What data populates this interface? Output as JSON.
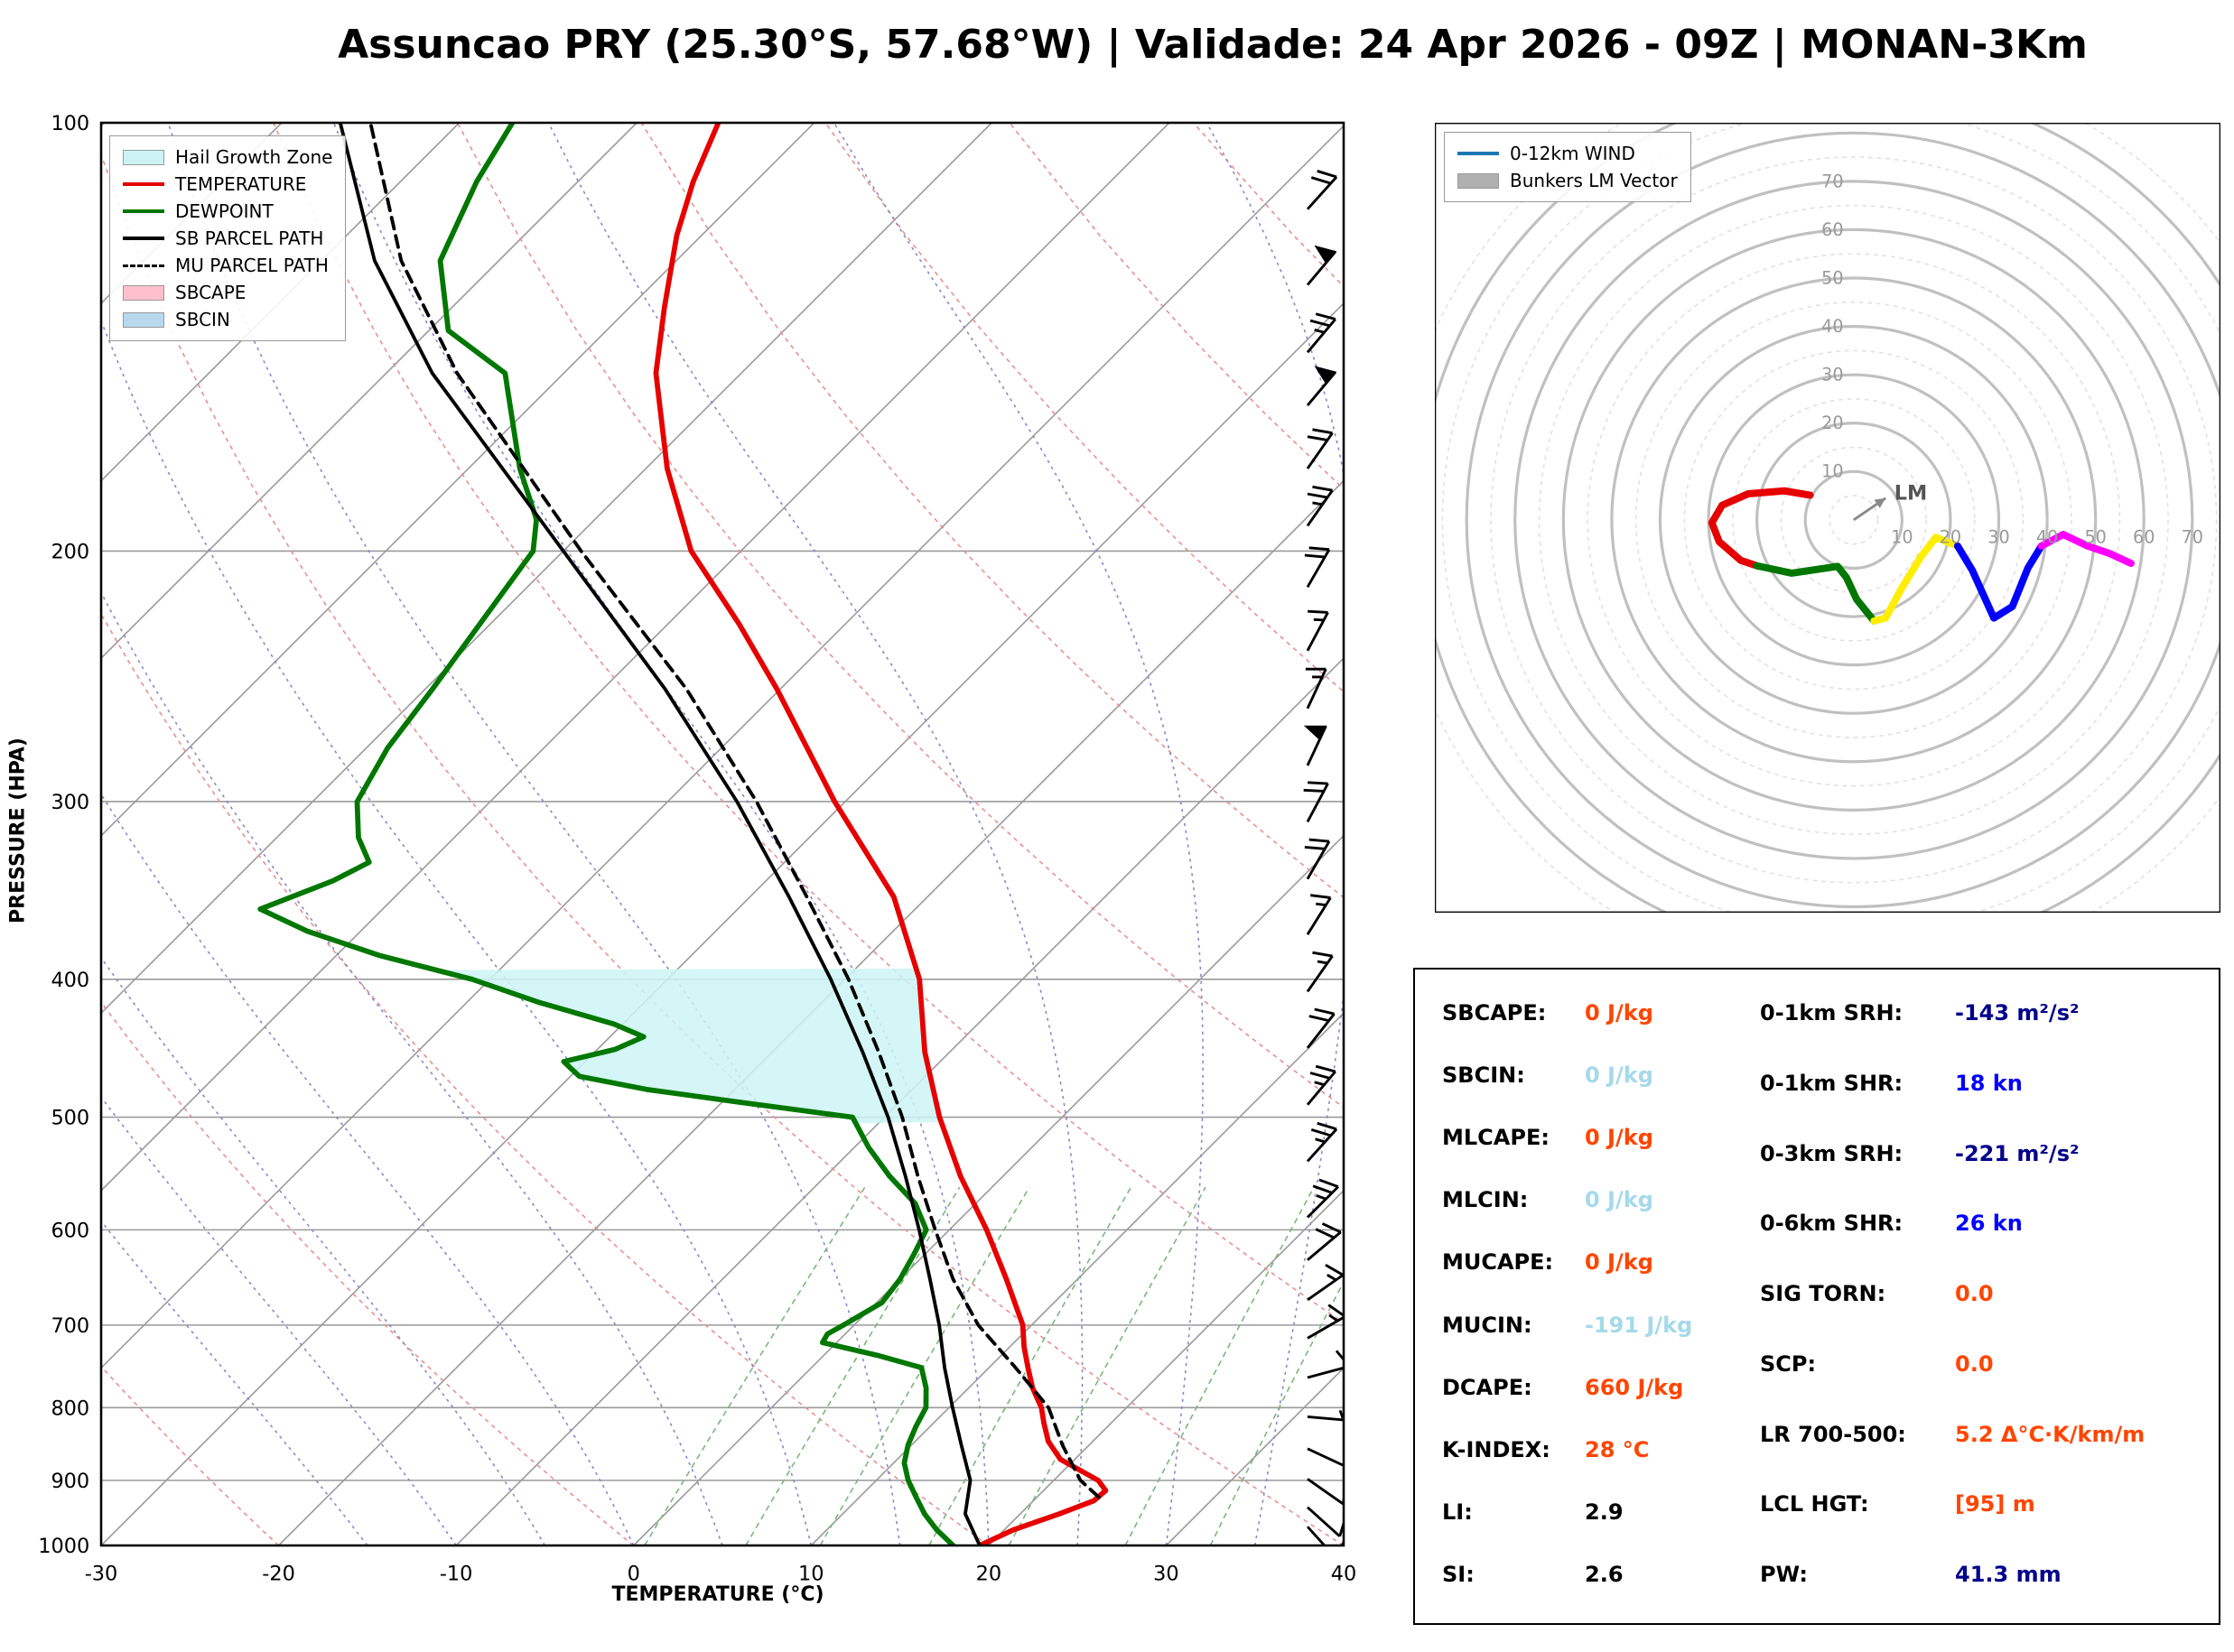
{
  "page": {
    "title": "Assuncao PRY (25.30°S, 57.68°W) | Validade: 24 Apr 2026 - 09Z | MONAN-3Km"
  },
  "skewt": {
    "xlabel": "TEMPERATURE (°C)",
    "ylabel": "PRESSURE (HPA)",
    "x_ticks": [
      -30,
      -20,
      -10,
      0,
      10,
      20,
      30,
      40
    ],
    "p_ticks": [
      100,
      200,
      300,
      400,
      500,
      600,
      700,
      800,
      900,
      1000
    ],
    "legend": [
      {
        "label": "Hail Growth Zone",
        "swatch": "patch",
        "color": "#cdf4f4"
      },
      {
        "label": "TEMPERATURE",
        "swatch": "line",
        "color": "#e60000"
      },
      {
        "label": "DEWPOINT",
        "swatch": "line",
        "color": "#007700"
      },
      {
        "label": "SB PARCEL PATH",
        "swatch": "line",
        "color": "#000000"
      },
      {
        "label": "MU PARCEL PATH",
        "swatch": "dashed",
        "color": "#000000"
      },
      {
        "label": "SBCAPE",
        "swatch": "patch",
        "color": "#ffc0cb"
      },
      {
        "label": "SBCIN",
        "swatch": "patch",
        "color": "#b8d8ee"
      }
    ],
    "wind_barbs": [
      {
        "p": 100,
        "spd": 20,
        "dir": 45
      },
      {
        "p": 115,
        "spd": 20,
        "dir": 42
      },
      {
        "p": 130,
        "spd": 50,
        "dir": 40
      },
      {
        "p": 145,
        "spd": 25,
        "dir": 40
      },
      {
        "p": 158,
        "spd": 50,
        "dir": 40
      },
      {
        "p": 175,
        "spd": 20,
        "dir": 35
      },
      {
        "p": 192,
        "spd": 25,
        "dir": 35
      },
      {
        "p": 212,
        "spd": 20,
        "dir": 30
      },
      {
        "p": 235,
        "spd": 15,
        "dir": 28
      },
      {
        "p": 258,
        "spd": 15,
        "dir": 25
      },
      {
        "p": 283,
        "spd": 50,
        "dir": 25
      },
      {
        "p": 310,
        "spd": 20,
        "dir": 28
      },
      {
        "p": 340,
        "spd": 20,
        "dir": 30
      },
      {
        "p": 372,
        "spd": 15,
        "dir": 32
      },
      {
        "p": 408,
        "spd": 15,
        "dir": 35
      },
      {
        "p": 447,
        "spd": 20,
        "dir": 38
      },
      {
        "p": 490,
        "spd": 25,
        "dir": 40
      },
      {
        "p": 537,
        "spd": 25,
        "dir": 42
      },
      {
        "p": 588,
        "spd": 25,
        "dir": 45
      },
      {
        "p": 630,
        "spd": 20,
        "dir": 50
      },
      {
        "p": 672,
        "spd": 15,
        "dir": 55
      },
      {
        "p": 715,
        "spd": 15,
        "dir": 60
      },
      {
        "p": 762,
        "spd": 10,
        "dir": 75
      },
      {
        "p": 812,
        "spd": 5,
        "dir": 95
      },
      {
        "p": 855,
        "spd": 10,
        "dir": 115
      },
      {
        "p": 898,
        "spd": 10,
        "dir": 125
      },
      {
        "p": 940,
        "spd": 10,
        "dir": 132
      },
      {
        "p": 970,
        "spd": 8,
        "dir": 138
      },
      {
        "p": 1000,
        "spd": 8,
        "dir": 142
      }
    ]
  },
  "chart_data": [
    {
      "type": "line",
      "title": "Skew-T Log-P sounding",
      "xlabel": "TEMPERATURE (°C)",
      "ylabel": "PRESSURE (HPA)",
      "xlim": [
        -30,
        40
      ],
      "ylim": [
        1000,
        100
      ],
      "y_scale": "log",
      "grid": true,
      "hail_growth_zone_pressure_range": [
        505,
        393
      ],
      "series": [
        {
          "name": "TEMPERATURE",
          "color": "#e60000",
          "style": "solid",
          "points_p_T": [
            [
              1000,
              19.5
            ],
            [
              975,
              20.5
            ],
            [
              950,
              22.2
            ],
            [
              930,
              23.4
            ],
            [
              915,
              23.5
            ],
            [
              900,
              22.5
            ],
            [
              870,
              19.2
            ],
            [
              845,
              17.5
            ],
            [
              820,
              16.2
            ],
            [
              800,
              15.2
            ],
            [
              775,
              13.6
            ],
            [
              750,
              12.2
            ],
            [
              725,
              10.8
            ],
            [
              700,
              9.5
            ],
            [
              650,
              6.0
            ],
            [
              600,
              2.1
            ],
            [
              550,
              -2.4
            ],
            [
              500,
              -6.9
            ],
            [
              450,
              -11.4
            ],
            [
              400,
              -15.8
            ],
            [
              350,
              -21.9
            ],
            [
              300,
              -30.6
            ],
            [
              250,
              -40.2
            ],
            [
              225,
              -46.0
            ],
            [
              200,
              -52.8
            ],
            [
              175,
              -58.8
            ],
            [
              150,
              -64.8
            ],
            [
              135,
              -68.0
            ],
            [
              120,
              -71.4
            ],
            [
              110,
              -73.5
            ],
            [
              100,
              -75.4
            ]
          ]
        },
        {
          "name": "DEWPOINT",
          "color": "#007700",
          "style": "solid",
          "points_p_T": [
            [
              1000,
              18.0
            ],
            [
              975,
              16.2
            ],
            [
              950,
              14.6
            ],
            [
              925,
              13.2
            ],
            [
              900,
              11.8
            ],
            [
              875,
              10.6
            ],
            [
              850,
              9.8
            ],
            [
              825,
              9.2
            ],
            [
              800,
              8.7
            ],
            [
              775,
              7.6
            ],
            [
              750,
              6.2
            ],
            [
              735,
              3.0
            ],
            [
              720,
              -0.8
            ],
            [
              710,
              -1.0
            ],
            [
              700,
              -0.6
            ],
            [
              675,
              0.3
            ],
            [
              650,
              0.0
            ],
            [
              625,
              -0.6
            ],
            [
              600,
              -1.3
            ],
            [
              575,
              -3.4
            ],
            [
              550,
              -6.4
            ],
            [
              525,
              -9.2
            ],
            [
              500,
              -11.8
            ],
            [
              488,
              -19.0
            ],
            [
              478,
              -25.0
            ],
            [
              468,
              -29.5
            ],
            [
              457,
              -31.2
            ],
            [
              448,
              -29.0
            ],
            [
              439,
              -28.1
            ],
            [
              430,
              -30.5
            ],
            [
              415,
              -36.0
            ],
            [
              400,
              -41.0
            ],
            [
              385,
              -47.5
            ],
            [
              370,
              -53.0
            ],
            [
              357,
              -56.9
            ],
            [
              341,
              -54.4
            ],
            [
              331,
              -53.4
            ],
            [
              318,
              -55.4
            ],
            [
              300,
              -57.5
            ],
            [
              275,
              -58.8
            ],
            [
              250,
              -59.6
            ],
            [
              225,
              -60.6
            ],
            [
              200,
              -61.7
            ],
            [
              190,
              -63.3
            ],
            [
              175,
              -67.1
            ],
            [
              150,
              -73.3
            ],
            [
              140,
              -78.9
            ],
            [
              125,
              -83.3
            ],
            [
              110,
              -85.7
            ],
            [
              100,
              -87.0
            ]
          ]
        },
        {
          "name": "SB PARCEL PATH",
          "color": "#000000",
          "style": "solid",
          "points_p_T": [
            [
              1000,
              19.5
            ],
            [
              950,
              16.9
            ],
            [
              900,
              15.3
            ],
            [
              850,
              12.8
            ],
            [
              800,
              10.2
            ],
            [
              750,
              7.5
            ],
            [
              700,
              4.8
            ],
            [
              650,
              1.7
            ],
            [
              600,
              -1.7
            ],
            [
              550,
              -5.5
            ],
            [
              500,
              -9.8
            ],
            [
              450,
              -14.9
            ],
            [
              400,
              -20.8
            ],
            [
              350,
              -27.8
            ],
            [
              300,
              -36.1
            ],
            [
              250,
              -46.5
            ],
            [
              200,
              -60.0
            ],
            [
              150,
              -77.4
            ],
            [
              125,
              -87.0
            ],
            [
              100,
              -96.7
            ]
          ]
        },
        {
          "name": "MU PARCEL PATH",
          "color": "#000000",
          "style": "dashed",
          "points_p_T": [
            [
              925,
              23.5
            ],
            [
              900,
              21.5
            ],
            [
              850,
              18.5
            ],
            [
              800,
              15.6
            ],
            [
              750,
              11.5
            ],
            [
              700,
              7.0
            ],
            [
              650,
              3.0
            ],
            [
              600,
              -0.8
            ],
            [
              550,
              -4.8
            ],
            [
              500,
              -9.0
            ],
            [
              450,
              -14.0
            ],
            [
              400,
              -19.8
            ],
            [
              350,
              -26.8
            ],
            [
              300,
              -35.0
            ],
            [
              250,
              -45.3
            ],
            [
              200,
              -59.0
            ],
            [
              150,
              -76.0
            ],
            [
              125,
              -85.5
            ],
            [
              100,
              -95.0
            ]
          ]
        }
      ]
    },
    {
      "type": "line",
      "title": "Hodograph (kn)",
      "rings": [
        10,
        20,
        30,
        40,
        50,
        60,
        70
      ],
      "lm_vector_uv": [
        6.6,
        4.5
      ],
      "segments": [
        {
          "name": "0-1km",
          "color": "#e60000",
          "points_uv": [
            [
              -9,
              5.1
            ],
            [
              -14.3,
              6
            ],
            [
              -21.8,
              5.4
            ],
            [
              -27.2,
              3
            ],
            [
              -29.3,
              -0.6
            ],
            [
              -27.8,
              -4.5
            ],
            [
              -23.3,
              -8.4
            ],
            [
              -20,
              -9.5
            ]
          ]
        },
        {
          "name": "1-3km",
          "color": "#007700",
          "points_uv": [
            [
              -20,
              -9.5
            ],
            [
              -12.8,
              -11
            ],
            [
              -3.3,
              -9.6
            ],
            [
              -1.5,
              -11.9
            ],
            [
              0.6,
              -16.4
            ],
            [
              4.2,
              -20.9
            ]
          ]
        },
        {
          "name": "3-6km",
          "color": "#ffee00",
          "points_uv": [
            [
              4.2,
              -20.9
            ],
            [
              6.6,
              -20.3
            ],
            [
              10,
              -14
            ],
            [
              14,
              -7.5
            ],
            [
              17,
              -3.6
            ],
            [
              21.5,
              -5.4
            ]
          ]
        },
        {
          "name": "6-9km",
          "color": "#0000ff",
          "points_uv": [
            [
              21.5,
              -5.4
            ],
            [
              24.5,
              -10.4
            ],
            [
              29,
              -20.3
            ],
            [
              32.8,
              -17.9
            ],
            [
              36,
              -10
            ],
            [
              38.8,
              -5.4
            ]
          ]
        },
        {
          "name": "9-12km",
          "color": "#ff00ff",
          "points_uv": [
            [
              38.8,
              -5.4
            ],
            [
              43.3,
              -3
            ],
            [
              48.4,
              -5.4
            ],
            [
              53,
              -7
            ],
            [
              57.3,
              -9
            ]
          ]
        }
      ]
    }
  ],
  "hodograph": {
    "lm_label": "LM",
    "legend": [
      {
        "label": "0-12km WIND",
        "swatch": "line",
        "color": "#1f77b4"
      },
      {
        "label": "Bunkers LM Vector",
        "swatch": "patch",
        "color": "#b0b0b0"
      }
    ]
  },
  "stats": {
    "left": [
      {
        "label": "SBCAPE:",
        "value": "0 J/kg",
        "color": "#ff4500"
      },
      {
        "label": "SBCIN:",
        "value": "0 J/kg",
        "color": "#a6d9ea"
      },
      {
        "label": "MLCAPE:",
        "value": "0 J/kg",
        "color": "#ff4500"
      },
      {
        "label": "MLCIN:",
        "value": "0 J/kg",
        "color": "#a6d9ea"
      },
      {
        "label": "MUCAPE:",
        "value": "0 J/kg",
        "color": "#ff4500"
      },
      {
        "label": "MUCIN:",
        "value": "-191 J/kg",
        "color": "#a6d9ea"
      },
      {
        "label": "DCAPE:",
        "value": "660 J/kg",
        "color": "#ff4500"
      },
      {
        "label": "K-INDEX:",
        "value": "28 °C",
        "color": "#ff4500"
      },
      {
        "label": "LI:",
        "value": "2.9",
        "color": "#000000"
      },
      {
        "label": "SI:",
        "value": "2.6",
        "color": "#000000"
      }
    ],
    "right": [
      {
        "label": "0-1km SRH:",
        "value": "-143 m²/s²",
        "color": "#00008b"
      },
      {
        "label": "0-1km SHR:",
        "value": "18 kn",
        "color": "#0000ff"
      },
      {
        "label": "0-3km SRH:",
        "value": "-221 m²/s²",
        "color": "#00008b"
      },
      {
        "label": "0-6km SHR:",
        "value": "26 kn",
        "color": "#0000ff"
      },
      {
        "label": "SIG TORN:",
        "value": "0.0",
        "color": "#ff4500"
      },
      {
        "label": "SCP:",
        "value": "0.0",
        "color": "#ff4500"
      },
      {
        "label": "LR 700-500:",
        "value": "5.2 Δ°C·K/km/m",
        "color": "#ff4500"
      },
      {
        "label": "LCL HGT:",
        "value": "[95] m",
        "color": "#ff4500"
      },
      {
        "label": "PW:",
        "value": "41.3 mm",
        "color": "#00008b"
      }
    ]
  }
}
